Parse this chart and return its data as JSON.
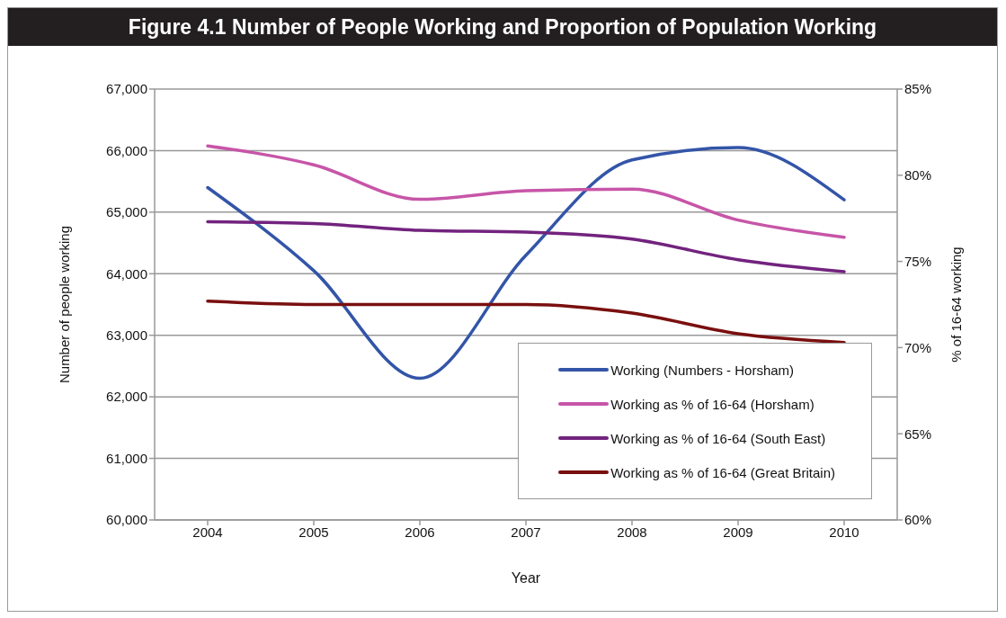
{
  "chart_data": {
    "type": "line",
    "title": "Figure 4.1 Number of People Working and Proportion of Population Working",
    "xlabel": "Year",
    "ylabel": "Number of people working",
    "y2label": "% of 16-64 working",
    "categories": [
      "2004",
      "2005",
      "2006",
      "2007",
      "2008",
      "2009",
      "2010"
    ],
    "series": [
      {
        "name": "Working (Numbers - Horsham)",
        "color": "#3355a8",
        "values": [
          65400,
          64050,
          62300,
          64300,
          65850,
          66050,
          65200
        ]
      },
      {
        "name": "Working as % of 16-64 (Horsham)",
        "color": "#c755a8",
        "axis": "y2",
        "values": [
          81.7,
          80.6,
          78.6,
          79.1,
          79.2,
          77.4,
          76.4
        ]
      },
      {
        "name": "Working as % of 16-64 (South East)",
        "color": "#72237e",
        "axis": "y2",
        "values": [
          77.3,
          77.2,
          76.8,
          76.7,
          76.3,
          75.1,
          74.4
        ]
      },
      {
        "name": "Working as % of 16-64 (Great Britain)",
        "color": "#7a0f0f",
        "axis": "y2",
        "values": [
          72.7,
          72.5,
          72.5,
          72.5,
          72.0,
          70.8,
          70.3
        ]
      }
    ],
    "ylim": [
      60000,
      67000
    ],
    "yticks": [
      {
        "value": 60000,
        "label": "60,000"
      },
      {
        "value": 61000,
        "label": "61,000"
      },
      {
        "value": 62000,
        "label": "62,000"
      },
      {
        "value": 63000,
        "label": "63,000"
      },
      {
        "value": 64000,
        "label": "64,000"
      },
      {
        "value": 65000,
        "label": "65,000"
      },
      {
        "value": 66000,
        "label": "66,000"
      },
      {
        "value": 67000,
        "label": "67,000"
      }
    ],
    "y2lim": [
      60,
      85
    ],
    "y2ticks": [
      {
        "value": 60,
        "label": "60%"
      },
      {
        "value": 65,
        "label": "65%"
      },
      {
        "value": 70,
        "label": "70%"
      },
      {
        "value": 75,
        "label": "75%"
      },
      {
        "value": 80,
        "label": "80%"
      },
      {
        "value": 85,
        "label": "85%"
      }
    ],
    "grid": "y",
    "legend": "bottom right",
    "marker": "none",
    "line_style": "solid"
  }
}
